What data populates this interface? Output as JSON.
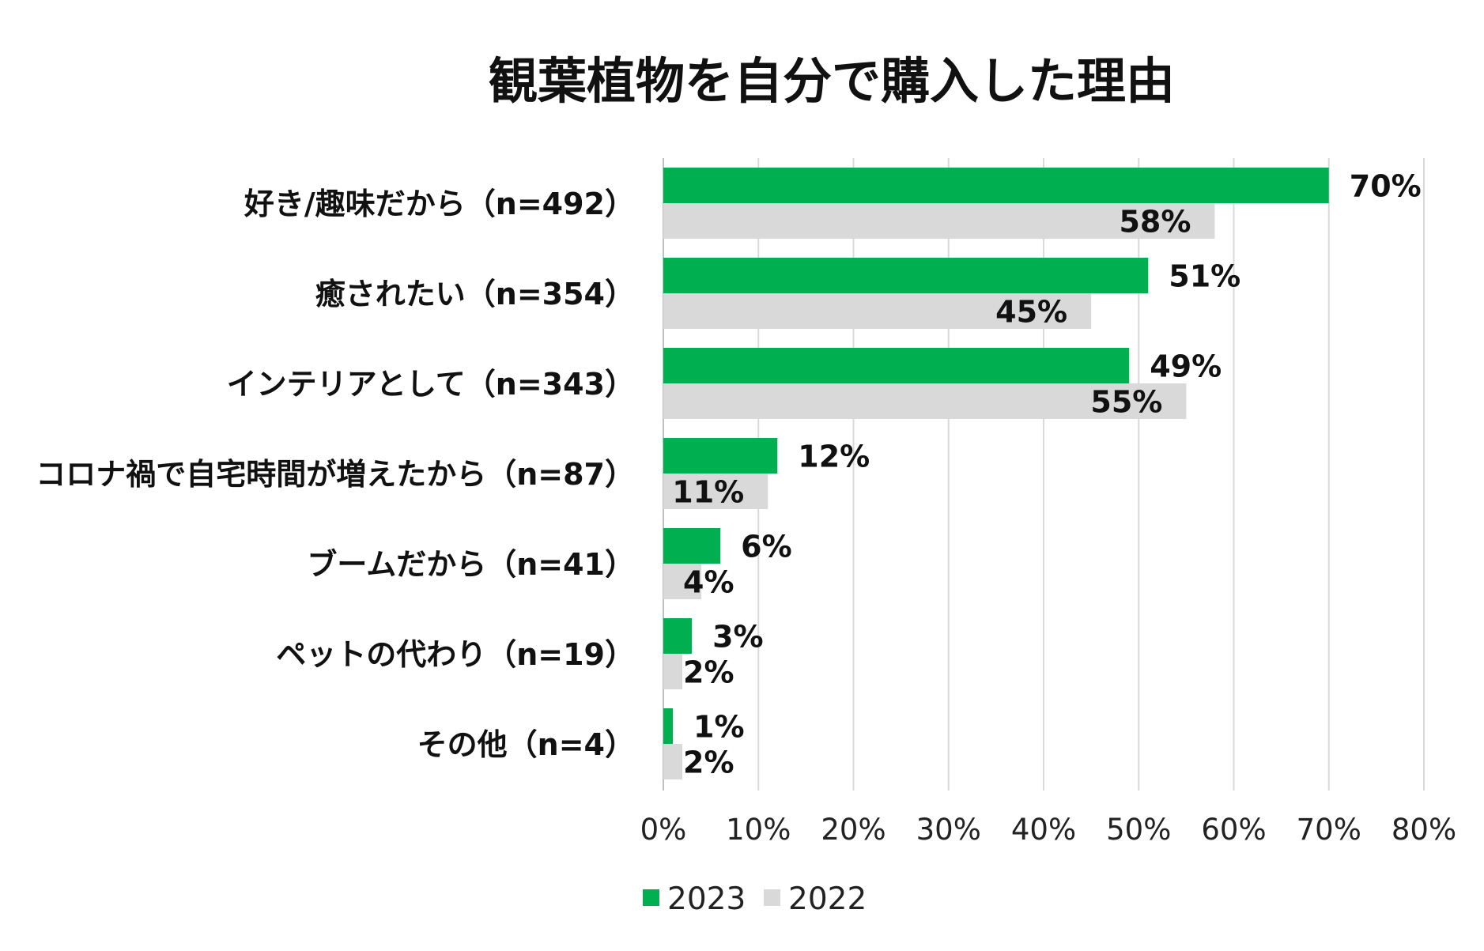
{
  "chart_data": {
    "type": "bar",
    "orientation": "horizontal",
    "title": "観葉植物を自分で購入した理由",
    "categories": [
      "好き/趣味だから（n=492）",
      "癒されたい（n=354）",
      "インテリアとして（n=343）",
      "コロナ禍で自宅時間が増えたから（n=87）",
      "ブームだから（n=41）",
      "ペットの代わり（n=19）",
      "その他（n=4）"
    ],
    "series": [
      {
        "name": "2023",
        "color": "#00b050",
        "values": [
          70,
          51,
          49,
          12,
          6,
          3,
          1
        ]
      },
      {
        "name": "2022",
        "color": "#d9d9d9",
        "values": [
          58,
          45,
          55,
          11,
          4,
          2,
          2
        ]
      }
    ],
    "xlim": [
      0,
      80
    ],
    "xticks": [
      "0%",
      "10%",
      "20%",
      "30%",
      "40%",
      "50%",
      "60%",
      "70%",
      "80%"
    ],
    "data_labels": [
      [
        "70%",
        "51%",
        "49%",
        "12%",
        "6%",
        "3%",
        "1%"
      ],
      [
        "58%",
        "45%",
        "55%",
        "11%",
        "4%",
        "2%",
        "2%"
      ]
    ],
    "grid": true,
    "legend_position": "bottom",
    "xlabel": "",
    "ylabel": ""
  }
}
